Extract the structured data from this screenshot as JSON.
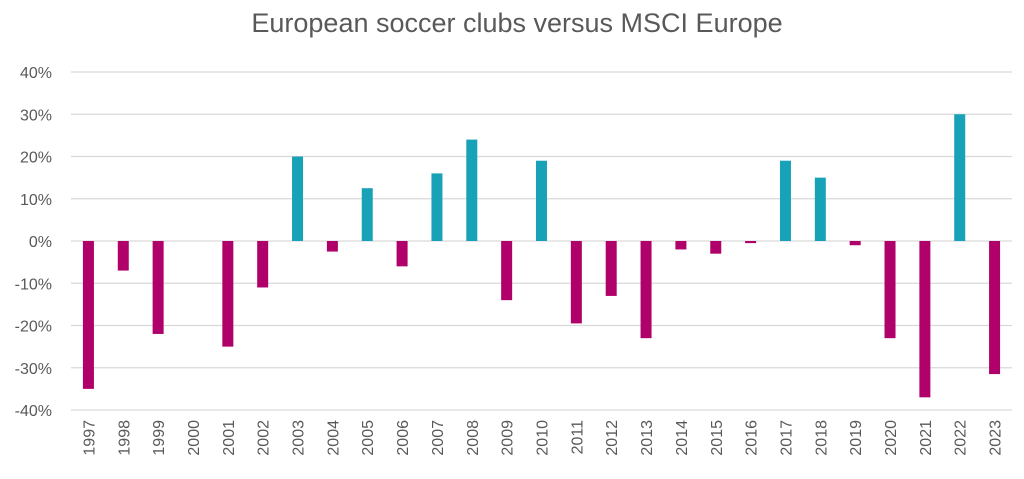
{
  "chart_data": {
    "type": "bar",
    "title": "European soccer clubs versus MSCI Europe",
    "xlabel": "",
    "ylabel": "",
    "ylim": [
      -40,
      40
    ],
    "ytick_values": [
      -40,
      -30,
      -20,
      -10,
      0,
      10,
      20,
      30,
      40
    ],
    "ytick_labels": [
      "-40%",
      "-30%",
      "-20%",
      "-10%",
      "0%",
      "10%",
      "20%",
      "30%",
      "40%"
    ],
    "grid": true,
    "legend": "none",
    "categories": [
      "1997",
      "1998",
      "1999",
      "2000",
      "2001",
      "2002",
      "2003",
      "2004",
      "2005",
      "2006",
      "2007",
      "2008",
      "2009",
      "2010",
      "2011",
      "2012",
      "2013",
      "2014",
      "2015",
      "2016",
      "2017",
      "2018",
      "2019",
      "2020",
      "2021",
      "2022",
      "2023"
    ],
    "values": [
      -35,
      -7,
      -22,
      0,
      -25,
      -11,
      20,
      -2.5,
      12.5,
      -6,
      16,
      24,
      -14,
      19,
      -19.5,
      -13,
      -23,
      -2,
      -3,
      -0.5,
      19,
      15,
      -1,
      -23,
      -37,
      30,
      -31.5
    ],
    "colors": {
      "positive": "#17a2b8",
      "negative": "#b0006a",
      "grid": "#d9d9d9",
      "text": "#595959"
    }
  }
}
